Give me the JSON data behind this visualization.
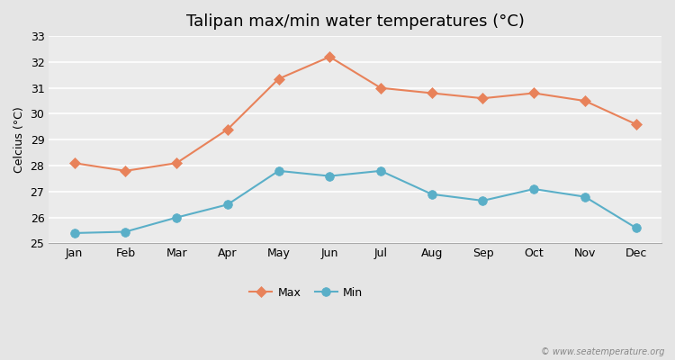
{
  "title": "Talipan max/min water temperatures (°C)",
  "ylabel": "Celcius (°C)",
  "months": [
    "Jan",
    "Feb",
    "Mar",
    "Apr",
    "May",
    "Jun",
    "Jul",
    "Aug",
    "Sep",
    "Oct",
    "Nov",
    "Dec"
  ],
  "max_temps": [
    28.1,
    27.8,
    28.1,
    29.4,
    31.35,
    32.2,
    31.0,
    30.8,
    30.6,
    30.8,
    30.5,
    29.6
  ],
  "min_temps": [
    25.4,
    25.45,
    26.0,
    26.5,
    27.8,
    27.6,
    27.8,
    26.9,
    26.65,
    27.1,
    26.8,
    25.6
  ],
  "max_color": "#e8825a",
  "min_color": "#5aafc8",
  "fig_bg_color": "#e5e5e5",
  "plot_bg_color": "#ebebeb",
  "grid_color": "#ffffff",
  "ylim": [
    25,
    33
  ],
  "yticks": [
    25,
    26,
    27,
    28,
    29,
    30,
    31,
    32,
    33
  ],
  "legend_labels": [
    "Max",
    "Min"
  ],
  "watermark": "© www.seatemperature.org",
  "title_fontsize": 13,
  "label_fontsize": 9,
  "tick_fontsize": 9,
  "max_marker_size": 6,
  "min_marker_size": 7,
  "line_width": 1.5
}
